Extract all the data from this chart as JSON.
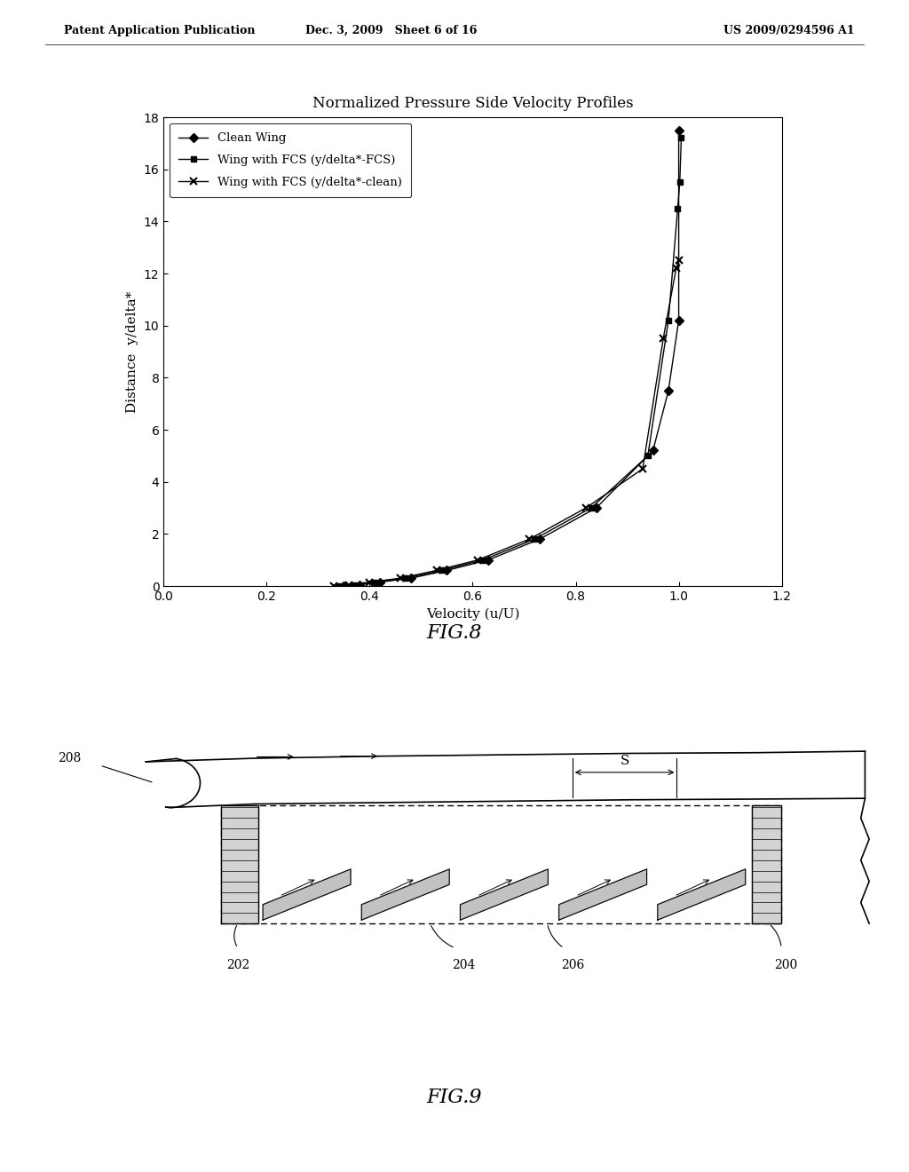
{
  "page_header_left": "Patent Application Publication",
  "page_header_mid": "Dec. 3, 2009   Sheet 6 of 16",
  "page_header_right": "US 2009/0294596 A1",
  "fig8_title": "Normalized Pressure Side Velocity Profiles",
  "fig8_xlabel": "Velocity (u/U)",
  "fig8_ylabel": "Distance  y/delta*",
  "fig8_xlim": [
    0,
    1.2
  ],
  "fig8_ylim": [
    0,
    18
  ],
  "fig8_xticks": [
    0,
    0.2,
    0.4,
    0.6,
    0.8,
    1.0,
    1.2
  ],
  "fig8_yticks": [
    0,
    2,
    4,
    6,
    8,
    10,
    12,
    14,
    16,
    18
  ],
  "clean_wing_u": [
    0.35,
    0.38,
    0.42,
    0.48,
    0.55,
    0.63,
    0.73,
    0.84,
    0.95,
    0.98,
    1.0,
    1.0
  ],
  "clean_wing_y": [
    0.0,
    0.05,
    0.15,
    0.3,
    0.6,
    1.0,
    1.8,
    3.0,
    5.2,
    7.5,
    10.2,
    17.5
  ],
  "fcs_fcs_u": [
    0.34,
    0.37,
    0.41,
    0.47,
    0.54,
    0.62,
    0.72,
    0.83,
    0.94,
    0.98,
    0.998,
    1.002,
    1.005
  ],
  "fcs_fcs_y": [
    0.0,
    0.05,
    0.15,
    0.3,
    0.6,
    1.0,
    1.8,
    3.0,
    5.0,
    10.2,
    14.5,
    15.5,
    17.2
  ],
  "fcs_clean_u": [
    0.33,
    0.36,
    0.4,
    0.46,
    0.53,
    0.61,
    0.71,
    0.82,
    0.93,
    0.97,
    0.995,
    1.0
  ],
  "fcs_clean_y": [
    0.0,
    0.05,
    0.15,
    0.3,
    0.6,
    1.0,
    1.8,
    3.0,
    4.5,
    9.5,
    12.2,
    12.5
  ],
  "legend1": "Clean Wing",
  "legend2": "Wing with FCS (y/delta*-FCS)",
  "legend3": "Wing with FCS (y/delta*-clean)",
  "fig8_label": "FIG.8",
  "fig9_label": "FIG.9",
  "label_208": "208",
  "label_202": "202",
  "label_204": "204",
  "label_206": "206",
  "label_200": "200",
  "label_S": "S",
  "background_color": "#ffffff",
  "line_color": "#000000"
}
